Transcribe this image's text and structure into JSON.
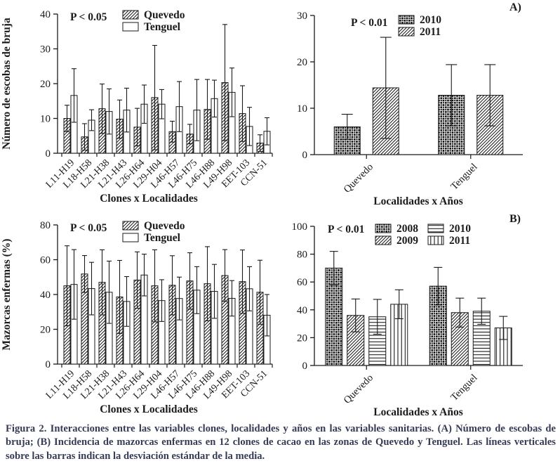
{
  "colors": {
    "ink": "#1a1a1a",
    "caption_text": "#353b54",
    "background": "#ffffff"
  },
  "caption": {
    "text": "Figura 2. Interacciones entre las variables clones, localidades y años en las variables sanitarias. (A) Número de escobas de bruja; (B) Incidencia de mazorcas enfermas en 12 clones de cacao en las zonas de Quevedo y Tenguel. Las líneas verticales sobre las barras indican la desviación estándar de la media."
  },
  "chart_data": [
    {
      "id": "escobas-clones",
      "type": "bar",
      "pvalue": "P < 0.05",
      "panel_label": "",
      "xlabel": "Clones x Localidades",
      "ylabel": "Número de escobas de bruja",
      "ylim": [
        0,
        40
      ],
      "yticks": [
        0,
        10,
        20,
        30,
        40
      ],
      "legend_position": "top-inside",
      "grid": false,
      "error_bars": "standard deviation, symmetric",
      "categories": [
        "L11-H19",
        "L18-H58",
        "L21-H38",
        "L21-H43",
        "L26-H64",
        "L29-H04",
        "L46-H57",
        "L46-H75",
        "L46-H88",
        "L49-H98",
        "EET-103",
        "CCN-51"
      ],
      "series": [
        {
          "name": "Quevedo",
          "pattern": "hatch",
          "values": [
            10.0,
            4.7,
            12.8,
            9.8,
            7.5,
            16.0,
            6.2,
            5.5,
            12.6,
            20.3,
            11.4,
            2.9
          ],
          "errors": [
            3.8,
            3.8,
            7.1,
            5.5,
            5.4,
            15.0,
            3.0,
            2.8,
            8.6,
            16.7,
            8.0,
            2.4
          ]
        },
        {
          "name": "Tenguel",
          "pattern": "plain",
          "values": [
            16.6,
            9.5,
            12.0,
            12.4,
            14.1,
            14.1,
            13.4,
            12.4,
            15.7,
            17.5,
            7.7,
            6.3
          ],
          "errors": [
            7.7,
            3.0,
            6.5,
            6.3,
            5.5,
            4.2,
            7.2,
            8.8,
            5.3,
            7.0,
            5.5,
            3.9
          ]
        }
      ]
    },
    {
      "id": "escobas-localidades",
      "type": "bar",
      "pvalue": "P < 0.01",
      "panel_label": "A)",
      "xlabel": "Localidades x Años",
      "ylabel": "",
      "ylim": [
        0,
        30
      ],
      "yticks": [
        0,
        10,
        20,
        30
      ],
      "legend_position": "top-inside",
      "grid": false,
      "error_bars": "standard deviation, symmetric",
      "categories": [
        "Quevedo",
        "Tenguel"
      ],
      "series": [
        {
          "name": "2010",
          "pattern": "checker",
          "values": [
            6.0,
            12.8
          ],
          "errors": [
            2.7,
            6.6
          ]
        },
        {
          "name": "2011",
          "pattern": "hatch",
          "values": [
            14.4,
            12.8
          ],
          "errors": [
            10.9,
            6.6
          ]
        }
      ]
    },
    {
      "id": "mazorcas-clones",
      "type": "bar",
      "pvalue": "P < 0.05",
      "panel_label": "",
      "xlabel": "Clones x Localidades",
      "ylabel": "Mazorcas enfermas (%)",
      "ylim": [
        0,
        80
      ],
      "yticks": [
        0,
        20,
        40,
        60,
        80
      ],
      "legend_position": "top-inside",
      "grid": false,
      "error_bars": "standard deviation, symmetric",
      "categories": [
        "L11-H19",
        "L18-H58",
        "L21-H38",
        "L21-H43",
        "L26-H64",
        "L29-H04",
        "L46-H57",
        "L46-H75",
        "L46-H88",
        "L49-H98",
        "EET-103",
        "CCN-51"
      ],
      "series": [
        {
          "name": "Quevedo",
          "pattern": "hatch",
          "values": [
            45.0,
            51.8,
            47.0,
            38.6,
            48.3,
            45.0,
            45.3,
            47.8,
            46.2,
            50.9,
            47.4,
            41.3
          ],
          "errors": [
            23.0,
            10.6,
            18.7,
            21.0,
            16.2,
            20.7,
            17.0,
            16.2,
            21.3,
            14.9,
            18.2,
            18.4
          ]
        },
        {
          "name": "Tenguel",
          "pattern": "plain",
          "values": [
            45.8,
            43.4,
            41.3,
            36.0,
            51.2,
            36.5,
            37.7,
            42.5,
            41.8,
            37.8,
            43.3,
            28.1
          ],
          "errors": [
            20.0,
            15.1,
            17.9,
            14.3,
            12.0,
            12.0,
            12.3,
            13.5,
            15.5,
            10.2,
            12.7,
            11.9
          ]
        }
      ]
    },
    {
      "id": "mazorcas-localidades",
      "type": "bar",
      "pvalue": "P < 0.01",
      "panel_label": "B)",
      "xlabel": "Localidades x Años",
      "ylabel": "",
      "ylim": [
        0,
        100
      ],
      "yticks": [
        0,
        20,
        40,
        60,
        80,
        100
      ],
      "legend_position": "top-inside-two-columns",
      "grid": false,
      "error_bars": "standard deviation, symmetric",
      "categories": [
        "Quevedo",
        "Tenguel"
      ],
      "series": [
        {
          "name": "2008",
          "pattern": "checker",
          "values": [
            70,
            57
          ],
          "errors": [
            12.0,
            13.5
          ]
        },
        {
          "name": "2009",
          "pattern": "hatch",
          "values": [
            36,
            38
          ],
          "errors": [
            11.8,
            10.4
          ]
        },
        {
          "name": "2010",
          "pattern": "hlines",
          "values": [
            35,
            39
          ],
          "errors": [
            12.5,
            9.4
          ]
        },
        {
          "name": "2011",
          "pattern": "vlines",
          "values": [
            44,
            27
          ],
          "errors": [
            10.4,
            8.3
          ]
        }
      ]
    }
  ]
}
